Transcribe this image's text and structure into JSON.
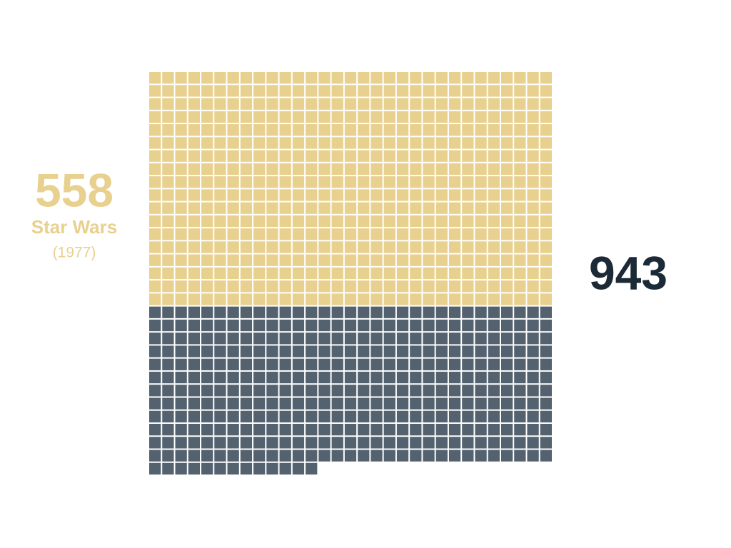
{
  "chart_data": {
    "type": "waffle",
    "total": 943,
    "total_color": "#1b2a36",
    "rest_color": "#546270",
    "series": [
      {
        "name": "Star Wars",
        "note": "(1977)",
        "value": 558,
        "color": "#e8d08f"
      }
    ]
  }
}
